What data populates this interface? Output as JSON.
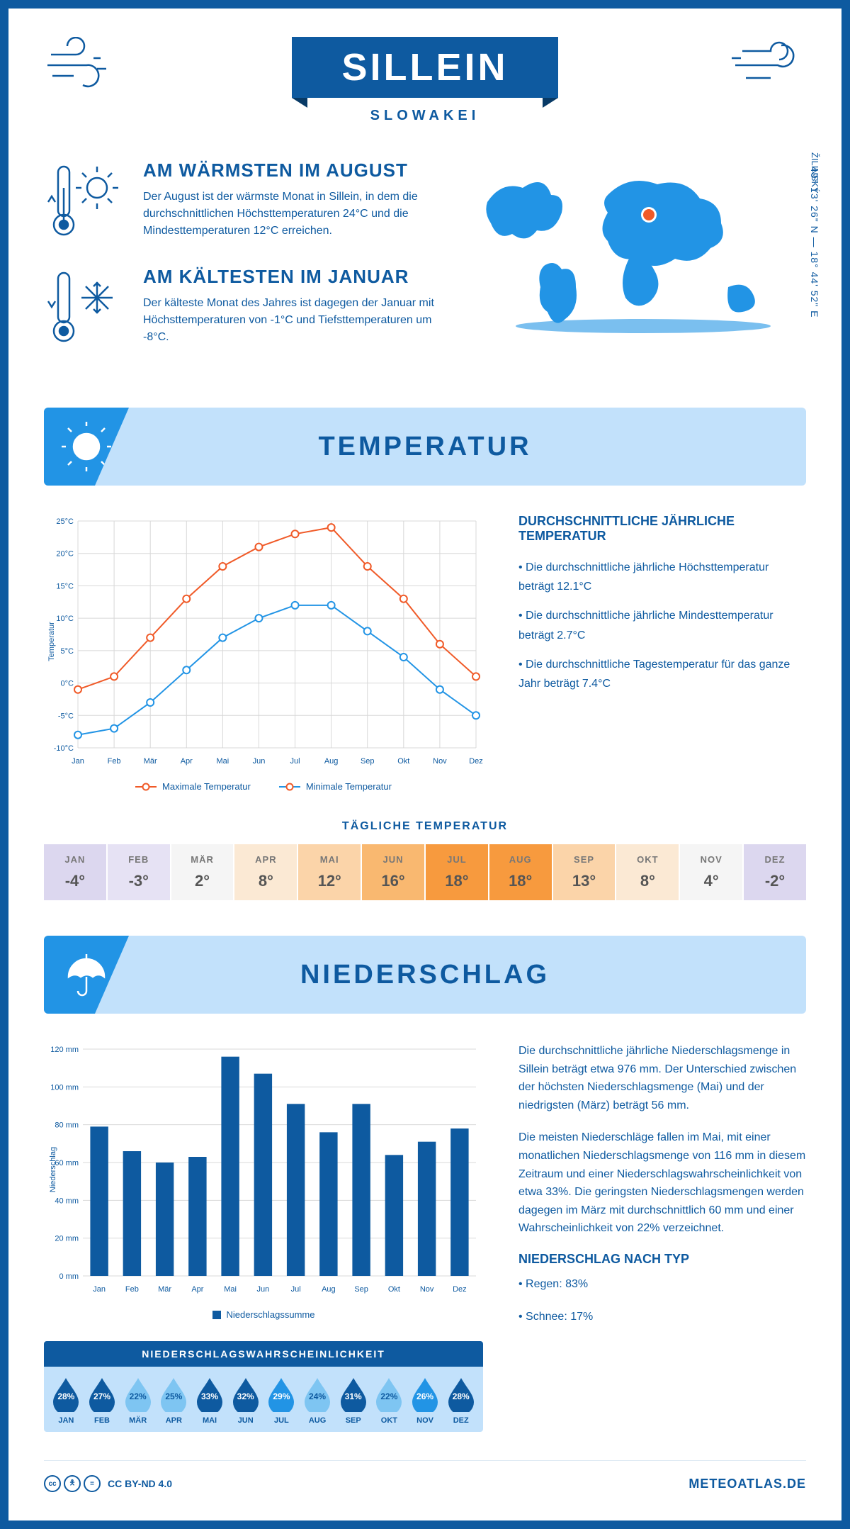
{
  "header": {
    "title": "SILLEIN",
    "subtitle": "SLOWAKEI",
    "region": "ŽILINSKÝ",
    "coords": "49° 13' 26\" N — 18° 44' 52\" E"
  },
  "colors": {
    "brand": "#0e5aa0",
    "accent": "#2294e5",
    "light": "#c2e1fb",
    "max_line": "#f05a28",
    "min_line": "#2294e5",
    "bar": "#0e5aa0",
    "grid": "#d8d8d8"
  },
  "info": {
    "warm": {
      "title": "AM WÄRMSTEN IM AUGUST",
      "text": "Der August ist der wärmste Monat in Sillein, in dem die durchschnittlichen Höchsttemperaturen 24°C und die Mindesttemperaturen 12°C erreichen."
    },
    "cold": {
      "title": "AM KÄLTESTEN IM JANUAR",
      "text": "Der kälteste Monat des Jahres ist dagegen der Januar mit Höchsttemperaturen von -1°C und Tiefsttemperaturen um -8°C."
    }
  },
  "temp_section": {
    "heading": "TEMPERATUR",
    "chart": {
      "type": "line",
      "months": [
        "Jan",
        "Feb",
        "Mär",
        "Apr",
        "Mai",
        "Jun",
        "Jul",
        "Aug",
        "Sep",
        "Okt",
        "Nov",
        "Dez"
      ],
      "max": [
        -1,
        1,
        7,
        13,
        18,
        21,
        23,
        24,
        18,
        13,
        6,
        1
      ],
      "min": [
        -8,
        -7,
        -3,
        2,
        7,
        10,
        12,
        12,
        8,
        4,
        -1,
        -5
      ],
      "ylim": [
        -10,
        25
      ],
      "ytick_step": 5,
      "yunit": "°C",
      "yaxis_label": "Temperatur",
      "max_color": "#f05a28",
      "min_color": "#2294e5",
      "line_width": 2,
      "marker_size": 5,
      "grid_color": "#d8d8d8",
      "label_fontsize": 11,
      "legend_max": "Maximale Temperatur",
      "legend_min": "Minimale Temperatur"
    },
    "desc_heading": "DURCHSCHNITTLICHE JÄHRLICHE TEMPERATUR",
    "desc1": "• Die durchschnittliche jährliche Höchsttemperatur beträgt 12.1°C",
    "desc2": "• Die durchschnittliche jährliche Mindesttemperatur beträgt 2.7°C",
    "desc3": "• Die durchschnittliche Tagestemperatur für das ganze Jahr beträgt 7.4°C",
    "daily_heading": "TÄGLICHE TEMPERATUR",
    "daily": {
      "months": [
        "JAN",
        "FEB",
        "MÄR",
        "APR",
        "MAI",
        "JUN",
        "JUL",
        "AUG",
        "SEP",
        "OKT",
        "NOV",
        "DEZ"
      ],
      "values": [
        "-4°",
        "-3°",
        "2°",
        "8°",
        "12°",
        "16°",
        "18°",
        "18°",
        "13°",
        "8°",
        "4°",
        "-2°"
      ],
      "bg": [
        "#dcd7ef",
        "#e6e2f4",
        "#f5f5f5",
        "#fbe9d4",
        "#fbd4a9",
        "#f9b870",
        "#f79a3e",
        "#f79a3e",
        "#fbd4a9",
        "#fbe9d4",
        "#f5f5f5",
        "#dcd7ef"
      ]
    }
  },
  "precip_section": {
    "heading": "NIEDERSCHLAG",
    "chart": {
      "type": "bar",
      "months": [
        "Jan",
        "Feb",
        "Mär",
        "Apr",
        "Mai",
        "Jun",
        "Jul",
        "Aug",
        "Sep",
        "Okt",
        "Nov",
        "Dez"
      ],
      "values": [
        79,
        66,
        60,
        63,
        116,
        107,
        91,
        76,
        91,
        64,
        71,
        78
      ],
      "ylim": [
        0,
        120
      ],
      "ytick_step": 20,
      "yunit": " mm",
      "yaxis_label": "Niederschlag",
      "bar_color": "#0e5aa0",
      "bar_width": 0.55,
      "grid_color": "#d8d8d8",
      "label_fontsize": 11,
      "legend": "Niederschlagssumme"
    },
    "desc1": "Die durchschnittliche jährliche Niederschlagsmenge in Sillein beträgt etwa 976 mm. Der Unterschied zwischen der höchsten Niederschlagsmenge (Mai) und der niedrigsten (März) beträgt 56 mm.",
    "desc2": "Die meisten Niederschläge fallen im Mai, mit einer monatlichen Niederschlagsmenge von 116 mm in diesem Zeitraum und einer Niederschlagswahrscheinlichkeit von etwa 33%. Die geringsten Niederschlagsmengen werden dagegen im März mit durchschnittlich 60 mm und einer Wahrscheinlichkeit von 22% verzeichnet.",
    "type_heading": "NIEDERSCHLAG NACH TYP",
    "type1": "• Regen: 83%",
    "type2": "• Schnee: 17%",
    "prob": {
      "heading": "NIEDERSCHLAGSWAHRSCHEINLICHKEIT",
      "months": [
        "JAN",
        "FEB",
        "MÄR",
        "APR",
        "MAI",
        "JUN",
        "JUL",
        "AUG",
        "SEP",
        "OKT",
        "NOV",
        "DEZ"
      ],
      "pct": [
        "28%",
        "27%",
        "22%",
        "25%",
        "33%",
        "32%",
        "29%",
        "24%",
        "31%",
        "22%",
        "26%",
        "28%"
      ],
      "fill": [
        "#0e5aa0",
        "#0e5aa0",
        "#7ec5f2",
        "#7ec5f2",
        "#0e5aa0",
        "#0e5aa0",
        "#2294e5",
        "#7ec5f2",
        "#0e5aa0",
        "#7ec5f2",
        "#2294e5",
        "#0e5aa0"
      ],
      "text": [
        "#fff",
        "#fff",
        "#0e5aa0",
        "#0e5aa0",
        "#fff",
        "#fff",
        "#fff",
        "#0e5aa0",
        "#fff",
        "#0e5aa0",
        "#fff",
        "#fff"
      ]
    }
  },
  "footer": {
    "license": "CC BY-ND 4.0",
    "site": "METEOATLAS.DE"
  }
}
